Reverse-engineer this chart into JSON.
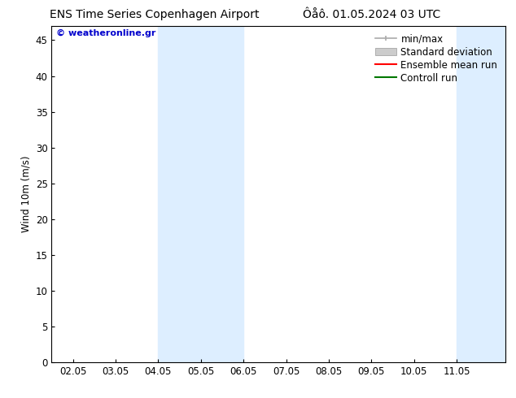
{
  "title_left": "ENS Time Series Copenhagen Airport",
  "title_right": "Ôåô. 01.05.2024 03 UTC",
  "ylabel": "Wind 10m (m/s)",
  "watermark": "© weatheronline.gr",
  "watermark_color": "#0000cc",
  "bg_color": "#ffffff",
  "plot_bg_color": "#ffffff",
  "shaded_regions": [
    {
      "x_start": 4.05,
      "x_end": 5.05,
      "color": "#ddeeff"
    },
    {
      "x_start": 5.05,
      "x_end": 6.05,
      "color": "#ccd8ee"
    },
    {
      "x_start": 11.05,
      "x_end": 11.55,
      "color": "#ddeeff"
    },
    {
      "x_start": 11.55,
      "x_end": 12.2,
      "color": "#ccd8ee"
    }
  ],
  "xlim": [
    1.55,
    12.2
  ],
  "ylim": [
    0,
    47
  ],
  "xticks": [
    2.05,
    3.05,
    4.05,
    5.05,
    6.05,
    7.05,
    8.05,
    9.05,
    10.05,
    11.05
  ],
  "xticklabels": [
    "02.05",
    "03.05",
    "04.05",
    "05.05",
    "06.05",
    "07.05",
    "08.05",
    "09.05",
    "10.05",
    "11.05"
  ],
  "yticks": [
    0,
    5,
    10,
    15,
    20,
    25,
    30,
    35,
    40,
    45
  ],
  "legend": [
    {
      "label": "min/max",
      "color": "#aaaaaa",
      "linestyle": "-",
      "linewidth": 1.2,
      "type": "errorbar"
    },
    {
      "label": "Standard deviation",
      "color": "#cccccc",
      "linestyle": "-",
      "linewidth": 7.0,
      "type": "band"
    },
    {
      "label": "Ensemble mean run",
      "color": "#ff0000",
      "linestyle": "-",
      "linewidth": 1.5,
      "type": "line"
    },
    {
      "label": "Controll run",
      "color": "#007700",
      "linestyle": "-",
      "linewidth": 1.5,
      "type": "line"
    }
  ],
  "font_size": 8.5,
  "title_font_size": 10,
  "axis_color": "#000000"
}
